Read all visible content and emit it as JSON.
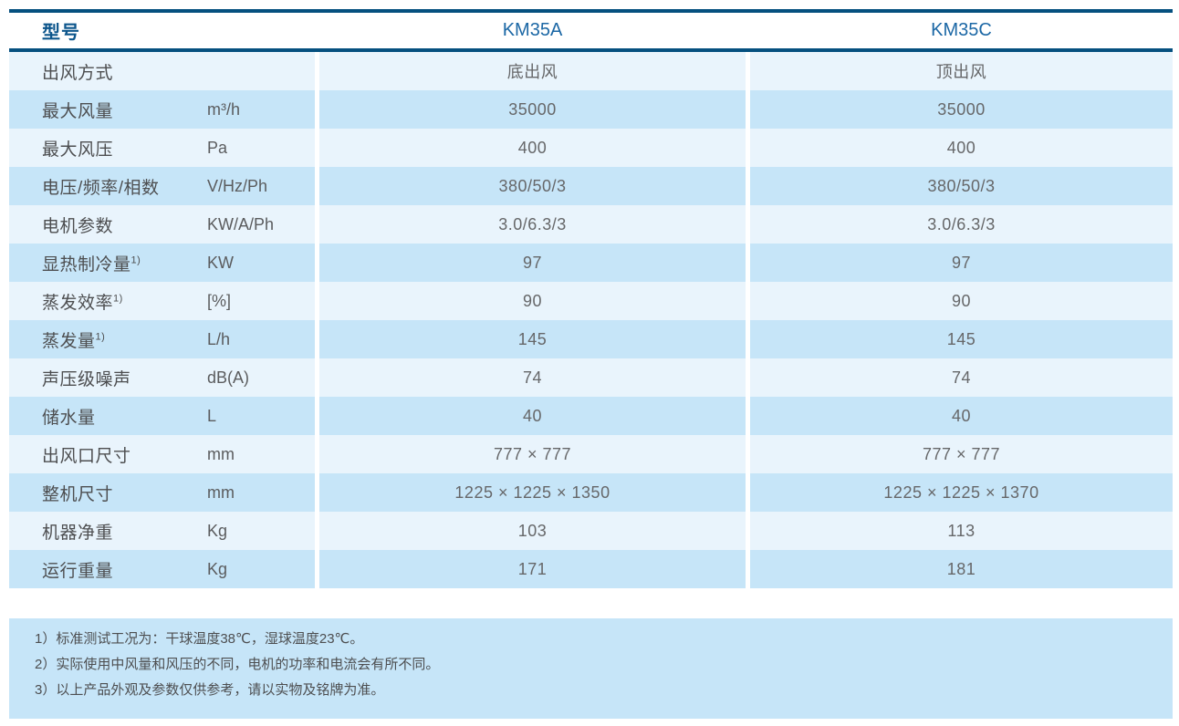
{
  "table": {
    "header": {
      "model_label": "型号",
      "col_a": "KM35A",
      "col_c": "KM35C"
    },
    "rows": [
      {
        "label": "出风方式",
        "sup": "",
        "unit": "",
        "a": "底出风",
        "c": "顶出风"
      },
      {
        "label": "最大风量",
        "sup": "",
        "unit": "m³/h",
        "a": "35000",
        "c": "35000"
      },
      {
        "label": "最大风压",
        "sup": "",
        "unit": "Pa",
        "a": "400",
        "c": "400"
      },
      {
        "label": "电压/频率/相数",
        "sup": "",
        "unit": "V/Hz/Ph",
        "a": "380/50/3",
        "c": "380/50/3"
      },
      {
        "label": "电机参数",
        "sup": "",
        "unit": "KW/A/Ph",
        "a": "3.0/6.3/3",
        "c": "3.0/6.3/3"
      },
      {
        "label": "显热制冷量",
        "sup": "1)",
        "unit": "KW",
        "a": "97",
        "c": "97"
      },
      {
        "label": "蒸发效率",
        "sup": "1)",
        "unit": "[%]",
        "a": "90",
        "c": "90"
      },
      {
        "label": "蒸发量",
        "sup": "1)",
        "unit": "L/h",
        "a": "145",
        "c": "145"
      },
      {
        "label": "声压级噪声",
        "sup": "",
        "unit": "dB(A)",
        "a": "74",
        "c": "74"
      },
      {
        "label": "储水量",
        "sup": "",
        "unit": "L",
        "a": "40",
        "c": "40"
      },
      {
        "label": "出风口尺寸",
        "sup": "",
        "unit": "mm",
        "a": "777 × 777",
        "c": "777 × 777"
      },
      {
        "label": "整机尺寸",
        "sup": "",
        "unit": "mm",
        "a": "1225 × 1225 × 1350",
        "c": "1225 × 1225 × 1370"
      },
      {
        "label": "机器净重",
        "sup": "",
        "unit": "Kg",
        "a": "103",
        "c": "113"
      },
      {
        "label": "运行重量",
        "sup": "",
        "unit": "Kg",
        "a": "171",
        "c": "181"
      }
    ]
  },
  "notes": {
    "items": [
      "1）标准测试工况为：干球温度38℃，湿球温度23℃。",
      "2）实际使用中风量和风压的不同，电机的功率和电流会有所不同。",
      "3）以上产品外观及参数仅供参考，请以实物及铭牌为准。"
    ]
  },
  "colors": {
    "rule_navy": "#05507f",
    "header_model_text": "#0d568c",
    "header_col_text": "#1b67a5",
    "row_light": "#e9f4fc",
    "row_dark": "#c6e5f8",
    "notes_bg": "#c6e5f8",
    "label_text": "#4d4e50",
    "value_text": "#666769"
  }
}
